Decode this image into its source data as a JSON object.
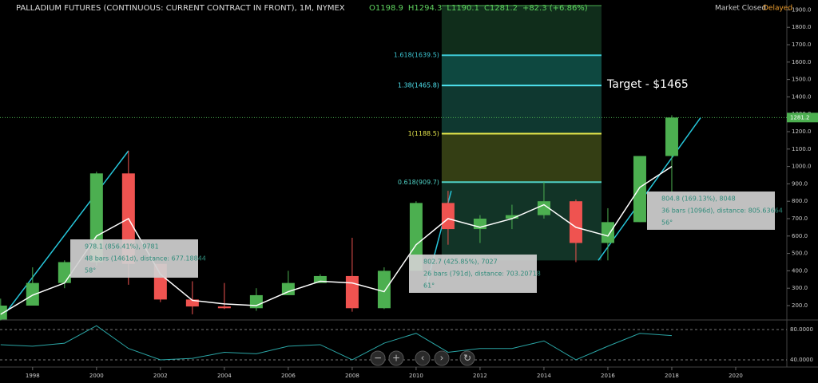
{
  "chart_data": {
    "type": "candlestick",
    "title": "PALLADIUM FUTURES (CONTINUOUS: CURRENT CONTRACT IN FRONT), 1M, NYMEX",
    "header_values": [
      "O1198.9",
      "H1294.3",
      "L1190.1",
      "C1281.2",
      "+82.3 (+6.86%)"
    ],
    "status": [
      "Market Closed",
      "Delayed"
    ],
    "annotation": "Target - $1465",
    "x": [
      1997,
      1998,
      1999,
      2000,
      2001,
      2002,
      2003,
      2004,
      2005,
      2006,
      2007,
      2008,
      2009,
      2010,
      2011,
      2012,
      2013,
      2014,
      2015,
      2016,
      2017,
      2018
    ],
    "open": [
      120,
      200,
      330,
      450,
      960,
      440,
      235,
      195,
      185,
      260,
      330,
      370,
      185,
      400,
      790,
      640,
      700,
      720,
      800,
      560,
      680,
      1060
    ],
    "high": [
      240,
      420,
      460,
      970,
      1090,
      440,
      340,
      330,
      300,
      400,
      380,
      590,
      420,
      800,
      860,
      720,
      780,
      910,
      810,
      760,
      1060,
      1294.3
    ],
    "low": [
      115,
      200,
      300,
      430,
      320,
      220,
      150,
      180,
      170,
      260,
      330,
      165,
      180,
      400,
      550,
      560,
      640,
      700,
      450,
      460,
      680,
      850
    ],
    "close": [
      200,
      330,
      450,
      960,
      440,
      235,
      195,
      185,
      260,
      330,
      370,
      185,
      400,
      790,
      640,
      700,
      720,
      800,
      560,
      680,
      1060,
      1281.2
    ],
    "up_color": "#4caf50",
    "down_color": "#ef5350",
    "ma": {
      "color": "#ffffff",
      "values": [
        150,
        260,
        330,
        600,
        700,
        380,
        230,
        210,
        200,
        280,
        340,
        330,
        280,
        550,
        700,
        650,
        700,
        780,
        650,
        600,
        880,
        1000
      ]
    },
    "xlim": [
      1996.98,
      2021.6
    ],
    "xticks": [
      1998,
      2000,
      2002,
      2004,
      2006,
      2008,
      2010,
      2012,
      2014,
      2016,
      2018,
      2020
    ],
    "ylim": [
      122,
      1957
    ],
    "yticks": [
      {
        "value": 200,
        "label": "200.0"
      },
      {
        "value": 300,
        "label": "300.0"
      },
      {
        "value": 400,
        "label": "400.0"
      },
      {
        "value": 500,
        "label": "500.0"
      },
      {
        "value": 600,
        "label": "600.0"
      },
      {
        "value": 700,
        "label": "700.0"
      },
      {
        "value": 800,
        "label": "800.0"
      },
      {
        "value": 900,
        "label": "900.0"
      },
      {
        "value": 1000,
        "label": "1000.0"
      },
      {
        "value": 1100,
        "label": "1100.0"
      },
      {
        "value": 1200,
        "label": "1200.0"
      },
      {
        "value": 1300,
        "label": "1300.0"
      },
      {
        "value": 1400,
        "label": "1400.0"
      },
      {
        "value": 1500,
        "label": "1500.0"
      },
      {
        "value": 1600,
        "label": "1600.0"
      },
      {
        "value": 1700,
        "label": "1700.0"
      },
      {
        "value": 1800,
        "label": "1800.0"
      },
      {
        "value": 1900,
        "label": "1900.0"
      }
    ],
    "last_price": {
      "value": 1281.2,
      "label": "1281.2"
    },
    "fib": {
      "x": [
        2010.8,
        2015.8
      ],
      "levels": [
        {
          "value": 909.7,
          "label": "0.618(909.7)",
          "color": "#4fd1c5"
        },
        {
          "value": 1188.5,
          "label": "1(1188.5)",
          "color": "#e6e64c"
        },
        {
          "value": 1465.8,
          "label": "1.38(1465.8)",
          "color": "#4fe3f0"
        },
        {
          "value": 1639.5,
          "label": "1.618(1639.5)",
          "color": "#3ec9d6"
        }
      ]
    },
    "trend_lines": [
      [
        1997,
        120,
        2001,
        1090
      ],
      [
        2010.3,
        300,
        2011.1,
        860
      ],
      [
        2015.7,
        460,
        2018.9,
        1280
      ]
    ],
    "measures": [
      [
        "978.1 (856.41%), 9781",
        "48 bars (1461d), distance: 677.18844",
        "58°"
      ],
      [
        "802.7 (425.85%), 7027",
        "26 bars (791d), distance: 703.20718",
        "61°"
      ],
      [
        "804.8 (169.13%), 8048",
        "36 bars (1096d), distance: 805.63664",
        "56°"
      ]
    ],
    "rsi": {
      "color": "#2aa5a5",
      "values": [
        60,
        58,
        62,
        85,
        55,
        40,
        42,
        50,
        48,
        58,
        60,
        40,
        62,
        75,
        50,
        55,
        55,
        65,
        40,
        58,
        75,
        72
      ],
      "ylim": [
        30.5,
        90.5
      ],
      "yticks": [
        {
          "value": 40,
          "label": "40.0000"
        },
        {
          "value": 80,
          "label": "80.0000"
        }
      ]
    }
  }
}
